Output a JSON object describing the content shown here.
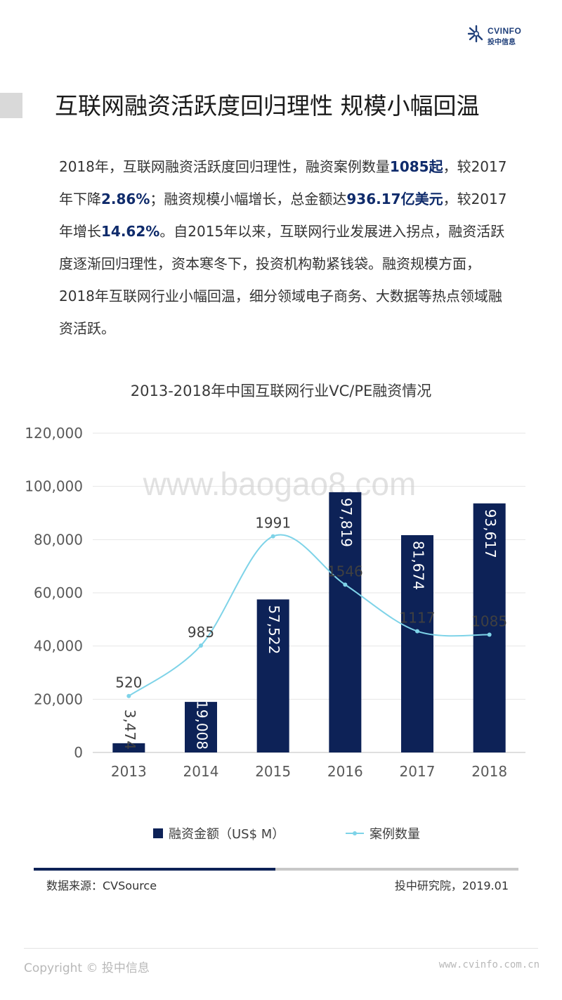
{
  "brand": {
    "name": "CVINFO",
    "name_cn": "投中信息",
    "colors": {
      "navy": "#0d2257",
      "accent": "#1f3f7a",
      "line": "#7ed3e8",
      "gray": "#c8c8c8"
    }
  },
  "header": {
    "title": "互联网融资活跃度回归理性  规模小幅回温"
  },
  "paragraph": {
    "p1": "2018年，互联网融资活跃度回归理性，融资案例数量",
    "h1": "1085起",
    "p2": "，较2017年下降",
    "h2": "2.86%",
    "p3": "；融资规模小幅增长，总金额达",
    "h3": "936.17亿美元",
    "p4": "，较2017年增长",
    "h4": "14.62%",
    "p5": "。自2015年以来，互联网行业发展进入拐点，融资活跃度逐渐回归理性，资本寒冬下，投资机构勒紧钱袋。融资规模方面，2018年互联网行业小幅回温，细分领域电子商务、大数据等热点领域融资活跃。"
  },
  "chart_data": {
    "type": "bar",
    "title": "2013-2018年中国互联网行业VC/PE融资情况",
    "categories": [
      "2013",
      "2014",
      "2015",
      "2016",
      "2017",
      "2018"
    ],
    "series": [
      {
        "name": "融资金额（US$ M）",
        "type": "bar",
        "values": [
          3474,
          19008,
          57522,
          97819,
          81674,
          93617
        ],
        "labels": [
          "3,474",
          "19,008",
          "57,522",
          "97,819",
          "81,674",
          "93,617"
        ],
        "color": "#0d2257"
      },
      {
        "name": "案例数量",
        "type": "line",
        "values": [
          520,
          985,
          1991,
          1546,
          1117,
          1085
        ],
        "labels": [
          "520",
          "985",
          "1991",
          "1546",
          "1117",
          "1085"
        ],
        "color": "#7ed3e8"
      }
    ],
    "ylim": [
      0,
      120000
    ],
    "yticks": [
      "0",
      "20,000",
      "40,000",
      "60,000",
      "80,000",
      "100,000",
      "120,000"
    ],
    "grid": true,
    "legend": "bottom",
    "watermark": "www.baogao8.com"
  },
  "source": {
    "left": "数据来源：CVSource",
    "right": "投中研究院，2019.01"
  },
  "footer": {
    "copyright": "Copyright © 投中信息",
    "site": "www.cvinfo.com.cn"
  }
}
